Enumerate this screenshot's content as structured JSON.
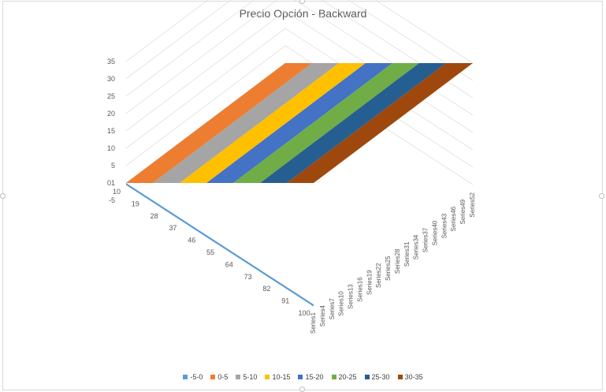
{
  "chart_data": {
    "type": "surface",
    "title": "Precio Opción - Backward",
    "z_ticks": [
      "-5",
      "01",
      "5",
      "10",
      "15",
      "20",
      "25",
      "30",
      "35"
    ],
    "x_tick_labels": [
      "10",
      "19",
      "28",
      "37",
      "46",
      "55",
      "64",
      "73",
      "82",
      "91",
      "100"
    ],
    "series_tick_labels": [
      "Series1",
      "Series4",
      "Series7",
      "Series10",
      "Series13",
      "Series16",
      "Series19",
      "Series22",
      "Series25",
      "Series28",
      "Series31",
      "Series34",
      "Series37",
      "Series40",
      "Series43",
      "Series46",
      "Series49",
      "Series52"
    ],
    "zlim": [
      -5,
      35
    ],
    "x_values": [
      1,
      10,
      19,
      28,
      37,
      46,
      55,
      64,
      73,
      82,
      91,
      100
    ],
    "surface_z_by_x": [
      0,
      0,
      0,
      0,
      0,
      0,
      0,
      0,
      0,
      0,
      0,
      0
    ],
    "surface_rise": {
      "x_start": 10,
      "x_end": 100,
      "z_start": 0,
      "z_end": 35
    },
    "bands": [
      {
        "label": "-5-0",
        "min": -5,
        "max": 0,
        "color": "#5b9bd5"
      },
      {
        "label": "0-5",
        "min": 0,
        "max": 5,
        "color": "#ed7d31"
      },
      {
        "label": "5-10",
        "min": 5,
        "max": 10,
        "color": "#a5a5a5"
      },
      {
        "label": "10-15",
        "min": 10,
        "max": 15,
        "color": "#ffc000"
      },
      {
        "label": "15-20",
        "min": 15,
        "max": 20,
        "color": "#4472c4"
      },
      {
        "label": "20-25",
        "min": 20,
        "max": 25,
        "color": "#70ad47"
      },
      {
        "label": "25-30",
        "min": 25,
        "max": 30,
        "color": "#255e91"
      },
      {
        "label": "30-35",
        "min": 30,
        "max": 35,
        "color": "#9e480e"
      }
    ],
    "grid": true,
    "legend_position": "bottom"
  }
}
